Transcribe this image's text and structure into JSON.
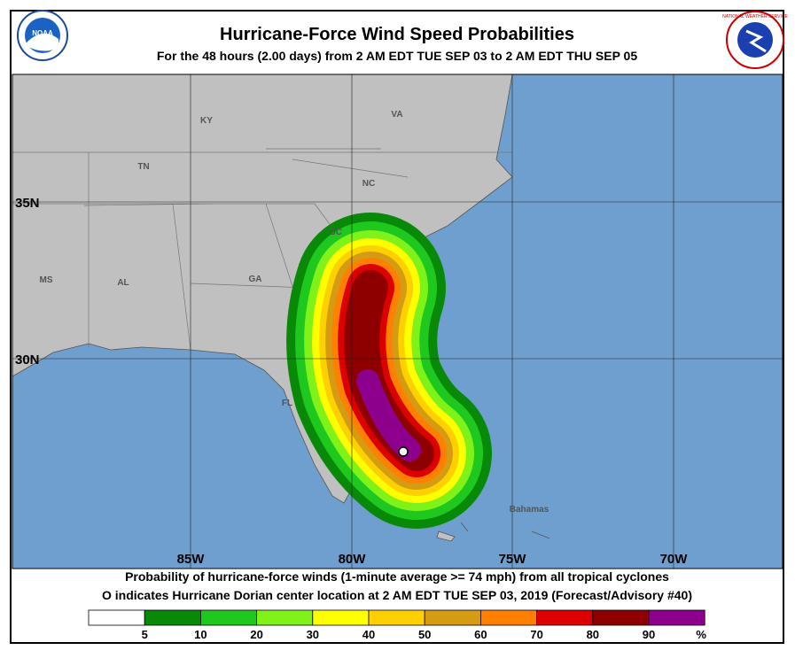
{
  "header": {
    "title": "Hurricane-Force Wind Speed Probabilities",
    "subtitle": "For the  48 hours (2.00 days) from 2 AM EDT TUE SEP 03 to 2 AM EDT THU SEP 05",
    "left_logo": "NOAA",
    "right_logo": "NATIONAL WEATHER SERVICE"
  },
  "map": {
    "places": [
      "KY",
      "VA",
      "TN",
      "NC",
      "SC",
      "MS",
      "AL",
      "GA",
      "FL",
      "Bahamas"
    ],
    "latitudes": [
      "35N",
      "30N"
    ],
    "longitudes": [
      "85W",
      "80W",
      "75W",
      "70W"
    ]
  },
  "footer": {
    "line1": "Probability of hurricane-force winds (1-minute average >= 74 mph) from all tropical cyclones",
    "line2": "O indicates Hurricane Dorian center location at 2 AM EDT TUE SEP 03, 2019 (Forecast/Advisory #40)"
  },
  "legend": {
    "colors": [
      "#ffffff",
      "#088a08",
      "#1ec81e",
      "#7ff21a",
      "#ffff00",
      "#ffd000",
      "#d59b12",
      "#ff8000",
      "#dd0000",
      "#8e0000",
      "#8c008c"
    ],
    "labels": [
      5,
      10,
      20,
      30,
      40,
      50,
      60,
      70,
      80,
      90
    ],
    "unit": "%"
  }
}
